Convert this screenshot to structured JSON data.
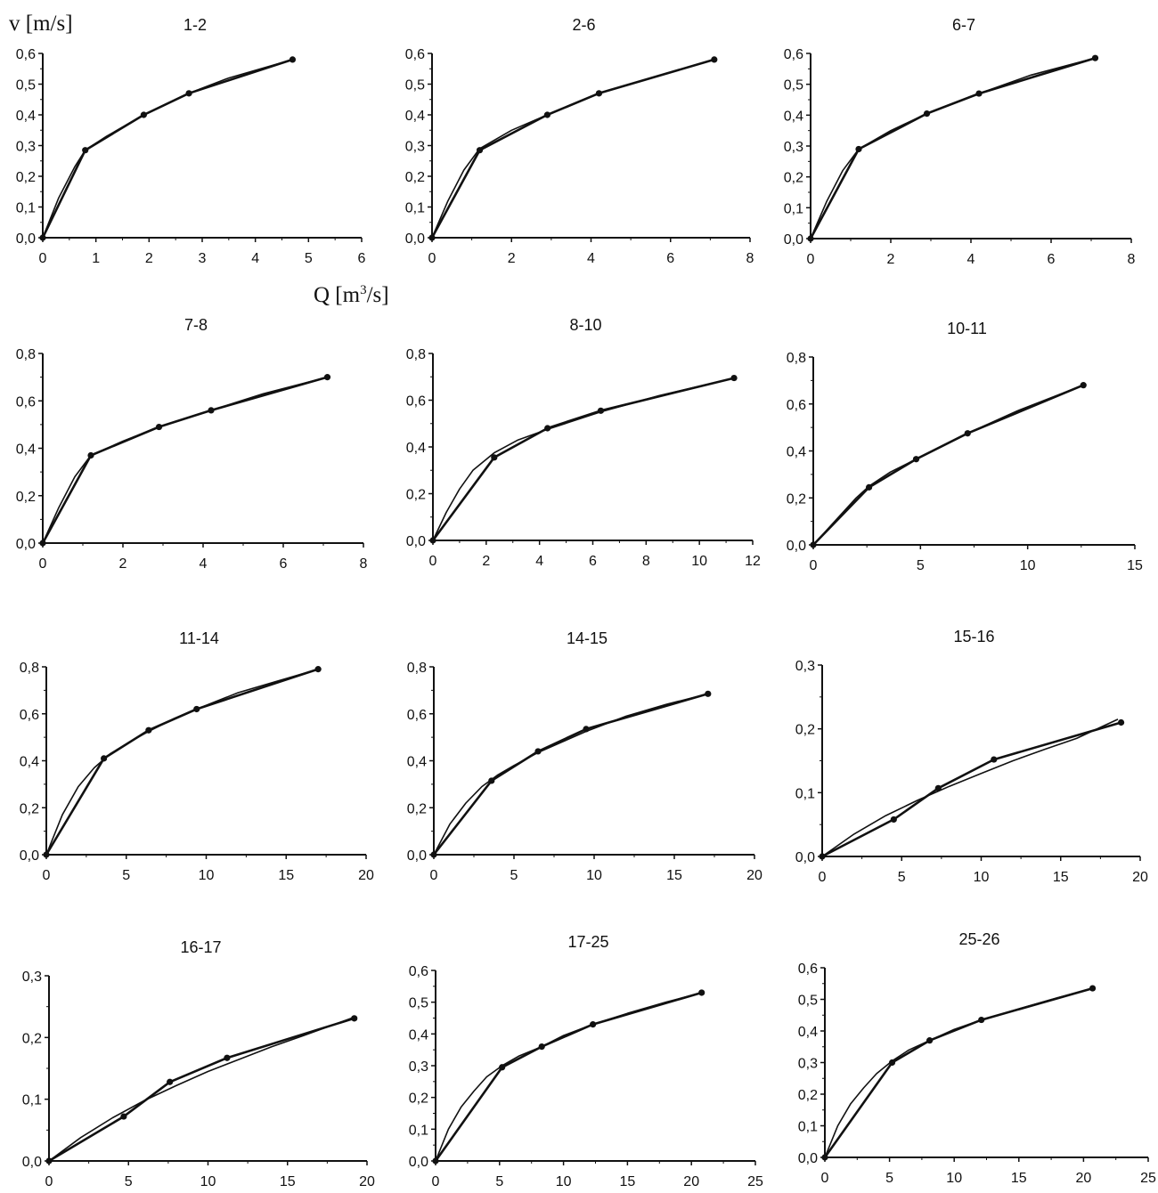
{
  "figure": {
    "ylabel": "v [m/s]",
    "xlabel_html": "Q [m3/s]",
    "xlabel_base": "Q [m",
    "xlabel_sup": "3",
    "xlabel_tail": "/s]"
  },
  "chart_data": [
    {
      "type": "line",
      "title": "1-2",
      "xlim": [
        0,
        6
      ],
      "ylim": [
        0,
        0.6
      ],
      "xticks": [
        0,
        1,
        2,
        3,
        4,
        5,
        6
      ],
      "yticks": [
        0,
        0.1,
        0.2,
        0.3,
        0.4,
        0.5,
        0.6
      ],
      "xtick_labels": [
        "0",
        "1",
        "2",
        "3",
        "4",
        "5",
        "6"
      ],
      "ytick_labels": [
        "0,0",
        "0,1",
        "0,2",
        "0,3",
        "0,4",
        "0,5",
        "0,6"
      ],
      "series": [
        {
          "x": [
            0,
            0.8,
            1.9,
            2.75,
            4.7
          ],
          "y": [
            0,
            0.285,
            0.4,
            0.47,
            0.58
          ],
          "markers": true
        },
        {
          "x": [
            0,
            0.3,
            0.6,
            0.8,
            1.2,
            1.9,
            2.75,
            3.5,
            4.7
          ],
          "y": [
            0,
            0.13,
            0.23,
            0.285,
            0.33,
            0.4,
            0.47,
            0.52,
            0.58
          ],
          "markers": false
        }
      ]
    },
    {
      "type": "line",
      "title": "2-6",
      "xlim": [
        0,
        8
      ],
      "ylim": [
        0,
        0.6
      ],
      "xticks": [
        0,
        2,
        4,
        6,
        8
      ],
      "yticks": [
        0,
        0.1,
        0.2,
        0.3,
        0.4,
        0.5,
        0.6
      ],
      "xtick_labels": [
        "0",
        "2",
        "4",
        "6",
        "8"
      ],
      "ytick_labels": [
        "0,0",
        "0,1",
        "0,2",
        "0,3",
        "0,4",
        "0,5",
        "0,6"
      ],
      "series": [
        {
          "x": [
            0,
            1.2,
            2.9,
            4.2,
            7.1
          ],
          "y": [
            0,
            0.285,
            0.4,
            0.47,
            0.58
          ],
          "markers": true
        },
        {
          "x": [
            0,
            0.4,
            0.8,
            1.2,
            2,
            2.9,
            4.2,
            5.5,
            7.1
          ],
          "y": [
            0,
            0.12,
            0.22,
            0.29,
            0.35,
            0.4,
            0.47,
            0.52,
            0.58
          ],
          "markers": false
        }
      ]
    },
    {
      "type": "line",
      "title": "6-7",
      "xlim": [
        0,
        8
      ],
      "ylim": [
        0,
        0.6
      ],
      "xticks": [
        0,
        2,
        4,
        6,
        8
      ],
      "yticks": [
        0,
        0.1,
        0.2,
        0.3,
        0.4,
        0.5,
        0.6
      ],
      "xtick_labels": [
        "0",
        "2",
        "4",
        "6",
        "8"
      ],
      "ytick_labels": [
        "0,0",
        "0,1",
        "0,2",
        "0,3",
        "0,4",
        "0,5",
        "0,6"
      ],
      "series": [
        {
          "x": [
            0,
            1.2,
            2.9,
            4.2,
            7.1
          ],
          "y": [
            0,
            0.29,
            0.405,
            0.47,
            0.585
          ],
          "markers": true
        },
        {
          "x": [
            0,
            0.4,
            0.8,
            1.2,
            2,
            2.9,
            4.2,
            5.5,
            7.1
          ],
          "y": [
            0,
            0.12,
            0.22,
            0.29,
            0.35,
            0.405,
            0.47,
            0.53,
            0.585
          ],
          "markers": false
        }
      ]
    },
    {
      "type": "line",
      "title": "7-8",
      "xlim": [
        0,
        8
      ],
      "ylim": [
        0,
        0.8
      ],
      "xticks": [
        0,
        2,
        4,
        6,
        8
      ],
      "yticks": [
        0,
        0.2,
        0.4,
        0.6,
        0.8
      ],
      "xtick_labels": [
        "0",
        "2",
        "4",
        "6",
        "8"
      ],
      "ytick_labels": [
        "0,0",
        "0,2",
        "0,4",
        "0,6",
        "0,8"
      ],
      "series": [
        {
          "x": [
            0,
            1.2,
            2.9,
            4.2,
            7.1
          ],
          "y": [
            0,
            0.37,
            0.49,
            0.56,
            0.7
          ],
          "markers": true
        },
        {
          "x": [
            0,
            0.4,
            0.8,
            1.2,
            2,
            2.9,
            4.2,
            5.5,
            7.1
          ],
          "y": [
            0,
            0.15,
            0.28,
            0.37,
            0.43,
            0.49,
            0.56,
            0.63,
            0.7
          ],
          "markers": false
        }
      ]
    },
    {
      "type": "line",
      "title": "8-10",
      "xlim": [
        0,
        12
      ],
      "ylim": [
        0,
        0.8
      ],
      "xticks": [
        0,
        2,
        4,
        6,
        8,
        10,
        12
      ],
      "yticks": [
        0,
        0.2,
        0.4,
        0.6,
        0.8
      ],
      "xtick_labels": [
        "0",
        "2",
        "4",
        "6",
        "8",
        "10",
        "12"
      ],
      "ytick_labels": [
        "0,0",
        "0,2",
        "0,4",
        "0,6",
        "0,8"
      ],
      "series": [
        {
          "x": [
            0,
            2.3,
            4.3,
            6.3,
            11.3
          ],
          "y": [
            0,
            0.355,
            0.48,
            0.555,
            0.695
          ],
          "markers": true
        },
        {
          "x": [
            0,
            0.5,
            1,
            1.5,
            2.3,
            3.2,
            4.3,
            6.3,
            8.5,
            11.3
          ],
          "y": [
            0,
            0.12,
            0.22,
            0.3,
            0.375,
            0.43,
            0.475,
            0.55,
            0.62,
            0.695
          ],
          "markers": false
        }
      ]
    },
    {
      "type": "line",
      "title": "10-11",
      "xlim": [
        0,
        15
      ],
      "ylim": [
        0,
        0.8
      ],
      "xticks": [
        0,
        5,
        10,
        15
      ],
      "yticks": [
        0,
        0.2,
        0.4,
        0.6,
        0.8
      ],
      "xtick_labels": [
        "0",
        "5",
        "10",
        "15"
      ],
      "ytick_labels": [
        "0,0",
        "0,2",
        "0,4",
        "0,6",
        "0,8"
      ],
      "series": [
        {
          "x": [
            0,
            2.6,
            4.8,
            7.2,
            12.6
          ],
          "y": [
            0,
            0.245,
            0.365,
            0.475,
            0.68
          ],
          "markers": true
        },
        {
          "x": [
            0,
            1,
            2,
            2.6,
            3.6,
            4.8,
            6,
            7.2,
            9.5,
            12.6
          ],
          "y": [
            0,
            0.1,
            0.2,
            0.25,
            0.31,
            0.365,
            0.42,
            0.475,
            0.57,
            0.68
          ],
          "markers": false
        }
      ]
    },
    {
      "type": "line",
      "title": "11-14",
      "xlim": [
        0,
        20
      ],
      "ylim": [
        0,
        0.8
      ],
      "xticks": [
        0,
        5,
        10,
        15,
        20
      ],
      "yticks": [
        0,
        0.2,
        0.4,
        0.6,
        0.8
      ],
      "xtick_labels": [
        "0",
        "5",
        "10",
        "15",
        "20"
      ],
      "ytick_labels": [
        "0,0",
        "0,2",
        "0,4",
        "0,6",
        "0,8"
      ],
      "series": [
        {
          "x": [
            0,
            3.6,
            6.4,
            9.4,
            17
          ],
          "y": [
            0,
            0.41,
            0.53,
            0.62,
            0.79
          ],
          "markers": true
        },
        {
          "x": [
            0,
            1,
            2,
            3,
            4,
            5.2,
            6.4,
            8,
            9.4,
            12,
            14.5,
            17
          ],
          "y": [
            0,
            0.17,
            0.29,
            0.37,
            0.43,
            0.48,
            0.525,
            0.58,
            0.62,
            0.69,
            0.74,
            0.79
          ],
          "markers": false
        }
      ]
    },
    {
      "type": "line",
      "title": "14-15",
      "xlim": [
        0,
        20
      ],
      "ylim": [
        0,
        0.8
      ],
      "xticks": [
        0,
        5,
        10,
        15,
        20
      ],
      "yticks": [
        0,
        0.2,
        0.4,
        0.6,
        0.8
      ],
      "xtick_labels": [
        "0",
        "5",
        "10",
        "15",
        "20"
      ],
      "ytick_labels": [
        "0,0",
        "0,2",
        "0,4",
        "0,6",
        "0,8"
      ],
      "series": [
        {
          "x": [
            0,
            3.6,
            6.5,
            9.5,
            17.1
          ],
          "y": [
            0,
            0.315,
            0.44,
            0.535,
            0.685
          ],
          "markers": true
        },
        {
          "x": [
            0,
            1,
            2,
            3,
            4,
            5,
            6.5,
            8,
            9.5,
            12,
            14.5,
            17.1
          ],
          "y": [
            0,
            0.13,
            0.22,
            0.29,
            0.34,
            0.38,
            0.435,
            0.48,
            0.525,
            0.59,
            0.64,
            0.685
          ],
          "markers": false
        }
      ]
    },
    {
      "type": "line",
      "title": "15-16",
      "xlim": [
        0,
        20
      ],
      "ylim": [
        0,
        0.3
      ],
      "xticks": [
        0,
        5,
        10,
        15,
        20
      ],
      "yticks": [
        0,
        0.1,
        0.2,
        0.3
      ],
      "xtick_labels": [
        "0",
        "5",
        "10",
        "15",
        "20"
      ],
      "ytick_labels": [
        "0,0",
        "0,1",
        "0,2",
        "0,3"
      ],
      "series": [
        {
          "x": [
            0,
            4.5,
            7.3,
            10.8,
            18.8
          ],
          "y": [
            0,
            0.058,
            0.107,
            0.152,
            0.21
          ],
          "markers": true
        },
        {
          "x": [
            0,
            2,
            4,
            6,
            8,
            10,
            12,
            14,
            16,
            18.6
          ],
          "y": [
            0,
            0.035,
            0.064,
            0.088,
            0.11,
            0.13,
            0.15,
            0.168,
            0.185,
            0.215
          ],
          "markers": false
        }
      ]
    },
    {
      "type": "line",
      "title": "16-17",
      "xlim": [
        0,
        20
      ],
      "ylim": [
        0,
        0.3
      ],
      "xticks": [
        0,
        5,
        10,
        15,
        20
      ],
      "yticks": [
        0,
        0.1,
        0.2,
        0.3
      ],
      "xtick_labels": [
        "0",
        "5",
        "10",
        "15",
        "20"
      ],
      "ytick_labels": [
        "0,0",
        "0,1",
        "0,2",
        "0,3"
      ],
      "series": [
        {
          "x": [
            0,
            4.7,
            7.6,
            11.2,
            19.2
          ],
          "y": [
            0,
            0.072,
            0.128,
            0.167,
            0.231
          ],
          "markers": true
        },
        {
          "x": [
            0,
            2,
            4,
            6,
            8,
            10,
            12,
            14,
            16,
            19.2
          ],
          "y": [
            0,
            0.038,
            0.07,
            0.098,
            0.122,
            0.145,
            0.165,
            0.185,
            0.203,
            0.233
          ],
          "markers": false
        }
      ]
    },
    {
      "type": "line",
      "title": "17-25",
      "xlim": [
        0,
        25
      ],
      "ylim": [
        0,
        0.6
      ],
      "xticks": [
        0,
        5,
        10,
        15,
        20,
        25
      ],
      "yticks": [
        0,
        0.1,
        0.2,
        0.3,
        0.4,
        0.5,
        0.6
      ],
      "xtick_labels": [
        "0",
        "5",
        "10",
        "15",
        "20",
        "25"
      ],
      "ytick_labels": [
        "0,0",
        "0,1",
        "0,2",
        "0,3",
        "0,4",
        "0,5",
        "0,6"
      ],
      "series": [
        {
          "x": [
            0,
            5.2,
            8.3,
            12.3,
            20.8
          ],
          "y": [
            0,
            0.295,
            0.36,
            0.43,
            0.53
          ],
          "markers": true
        },
        {
          "x": [
            0,
            1,
            2,
            3,
            4,
            5.2,
            6.5,
            8.3,
            10,
            12.3,
            15,
            18,
            20.8
          ],
          "y": [
            0,
            0.1,
            0.17,
            0.22,
            0.265,
            0.3,
            0.33,
            0.36,
            0.395,
            0.43,
            0.465,
            0.5,
            0.53
          ],
          "markers": false
        }
      ]
    },
    {
      "type": "line",
      "title": "25-26",
      "xlim": [
        0,
        25
      ],
      "ylim": [
        0,
        0.6
      ],
      "xticks": [
        0,
        5,
        10,
        15,
        20,
        25
      ],
      "yticks": [
        0,
        0.1,
        0.2,
        0.3,
        0.4,
        0.5,
        0.6
      ],
      "xtick_labels": [
        "0",
        "5",
        "10",
        "15",
        "20",
        "25"
      ],
      "ytick_labels": [
        "0,0",
        "0,1",
        "0,2",
        "0,3",
        "0,4",
        "0,5",
        "0,6"
      ],
      "series": [
        {
          "x": [
            0,
            5.2,
            8.1,
            12.1,
            20.7
          ],
          "y": [
            0,
            0.3,
            0.37,
            0.435,
            0.535
          ],
          "markers": true
        },
        {
          "x": [
            0,
            1,
            2,
            3,
            4,
            5.2,
            6.5,
            8.1,
            10,
            12.1,
            15,
            18,
            20.7
          ],
          "y": [
            0,
            0.1,
            0.17,
            0.22,
            0.265,
            0.305,
            0.34,
            0.37,
            0.405,
            0.435,
            0.47,
            0.505,
            0.535
          ],
          "markers": false
        }
      ]
    }
  ]
}
